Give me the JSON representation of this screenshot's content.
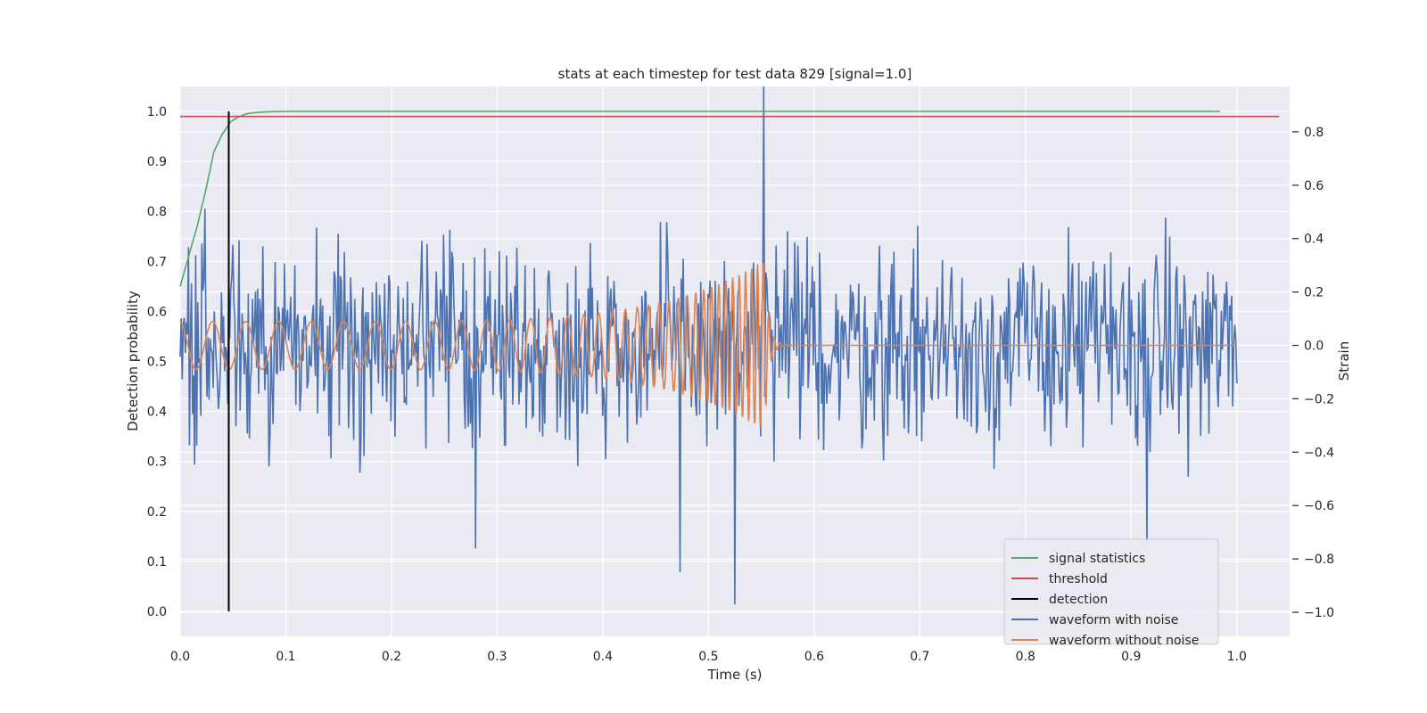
{
  "chart_data": {
    "type": "line",
    "title": "stats at each timestep for test data 829 [signal=1.0]",
    "xlabel": "Time (s)",
    "ylabel_left": "Detection probability",
    "ylabel_right": "Strain",
    "xlim": [
      0.0,
      1.05
    ],
    "ylim_left": [
      -0.05,
      1.05
    ],
    "ylim_right": [
      -1.09,
      0.97
    ],
    "x_ticks": [
      "0.0",
      "0.1",
      "0.2",
      "0.3",
      "0.4",
      "0.5",
      "0.6",
      "0.7",
      "0.8",
      "0.9",
      "1.0"
    ],
    "y_left_ticks": [
      "0.0",
      "0.1",
      "0.2",
      "0.3",
      "0.4",
      "0.5",
      "0.6",
      "0.7",
      "0.8",
      "0.9",
      "1.0"
    ],
    "y_right_ticks": [
      "−1.0",
      "−0.8",
      "−0.6",
      "−0.4",
      "−0.2",
      "0.0",
      "0.2",
      "0.4",
      "0.6",
      "0.8"
    ],
    "grid": true,
    "legend_position": "lower-right",
    "colors": {
      "signal": "#55a868",
      "threshold": "#c44e52",
      "detection": "#000000",
      "noisy": "#4c72b0",
      "clean": "#dd8452",
      "plot_bg": "#eaeaf2",
      "grid": "#ffffff"
    },
    "series": [
      {
        "name": "signal statistics",
        "axis": "left",
        "x": [
          0.0,
          0.008,
          0.016,
          0.024,
          0.032,
          0.04,
          0.048,
          0.056,
          0.064,
          0.072,
          0.08,
          0.1,
          0.2,
          0.4,
          0.6,
          0.8,
          0.984
        ],
        "y": [
          0.65,
          0.71,
          0.77,
          0.84,
          0.92,
          0.955,
          0.98,
          0.99,
          0.996,
          0.998,
          0.999,
          1.0,
          1.0,
          1.0,
          1.0,
          1.0,
          1.0
        ]
      },
      {
        "name": "threshold",
        "axis": "left",
        "x": [
          0.0,
          1.04
        ],
        "y": [
          0.99,
          0.99
        ]
      },
      {
        "name": "detection",
        "axis": "left",
        "x": [
          0.046,
          0.046
        ],
        "y": [
          0.0,
          1.0
        ]
      },
      {
        "name": "waveform with noise",
        "axis": "right",
        "x_start": 0.0,
        "x_end": 1.0,
        "samples": 1024,
        "y_range": [
          -0.97,
          0.97
        ],
        "notable_peaks": [
          [
            0.552,
            0.97
          ],
          [
            0.525,
            -0.97
          ],
          [
            0.915,
            -0.74
          ],
          [
            0.473,
            -0.85
          ],
          [
            0.28,
            -0.76
          ]
        ]
      },
      {
        "name": "waveform without noise",
        "axis": "right",
        "x_start": 0.0,
        "x_end": 1.0,
        "merger_time": 0.553,
        "amplitude_start": 0.09,
        "amplitude_peak": 0.32,
        "freq_start_hz": 32,
        "freq_peak_hz": 190,
        "post_merger": 0.0
      }
    ],
    "legend": [
      {
        "label": "signal statistics",
        "color": "#55a868"
      },
      {
        "label": "threshold",
        "color": "#c44e52"
      },
      {
        "label": "detection",
        "color": "#000000"
      },
      {
        "label": "waveform with noise",
        "color": "#4c72b0"
      },
      {
        "label": "waveform without noise",
        "color": "#dd8452"
      }
    ]
  }
}
